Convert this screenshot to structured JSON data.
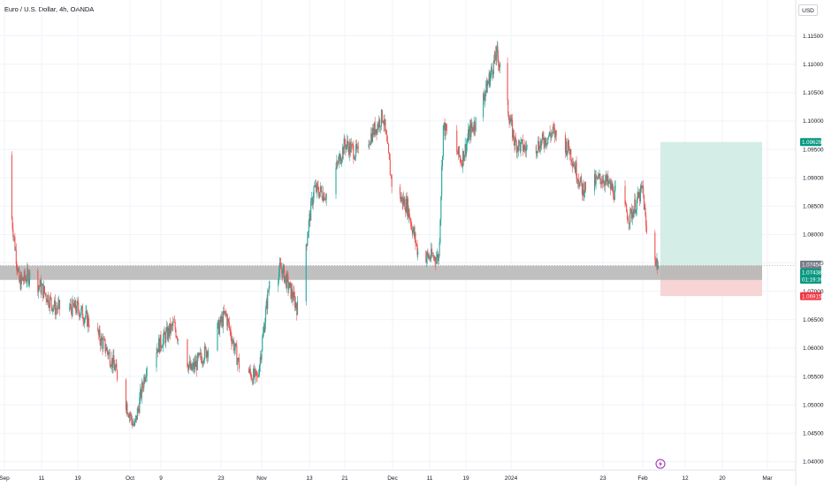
{
  "title": "Euro / U.S. Dollar, 4h, OANDA",
  "currency_button": "USD",
  "colors": {
    "up": "#26a69a",
    "down": "#ef5350",
    "profit_zone": "#d4ede6",
    "loss_zone": "#f7d4d6",
    "support_zone": "#b5b5b5",
    "grid": "#f0f3fa",
    "axis_border": "#e0e3eb",
    "event_icon": "#9c27b0"
  },
  "event_icon": "lightning-icon",
  "price_tags": [
    {
      "id": "target",
      "label": "1.09629",
      "value": 1.09629,
      "color": "#089981"
    },
    {
      "id": "entry",
      "label": "1.07454",
      "value": 1.07454,
      "color": "#787b86"
    },
    {
      "id": "last",
      "label": "1.07438",
      "value": 1.07438,
      "color": "#089981"
    },
    {
      "id": "countdown",
      "label": "01:19:39",
      "color": "#089981"
    },
    {
      "id": "stop",
      "label": "1.06915",
      "value": 1.06915,
      "color": "#f23645"
    }
  ],
  "chart_data": {
    "type": "candlestick",
    "symbol": "EUR/USD",
    "interval": "4h",
    "ylim": [
      1.0385,
      1.1185
    ],
    "y_ticks": [
      "1.11500",
      "1.11000",
      "1.10500",
      "1.10000",
      "1.09500",
      "1.09000",
      "1.08500",
      "1.08000",
      "1.07500",
      "1.07000",
      "1.06500",
      "1.06000",
      "1.05500",
      "1.05000",
      "1.04500",
      "1.04000"
    ],
    "x_ticks": [
      "Sep",
      "11",
      "19",
      "Oct",
      "9",
      "23",
      "Nov",
      "13",
      "21",
      "Dec",
      "11",
      "19",
      "2024",
      "23",
      "Feb",
      "12",
      "20",
      "Mar"
    ],
    "price_path": [
      [
        "Sep 1",
        1.094
      ],
      [
        "Sep 5",
        1.0715
      ],
      [
        "Sep 8",
        1.073
      ],
      [
        "Sep 11",
        1.0705
      ],
      [
        "Sep 14",
        1.067
      ],
      [
        "Sep 19",
        1.067
      ],
      [
        "Sep 22",
        1.0645
      ],
      [
        "Sep 26",
        1.06
      ],
      [
        "Sep 28",
        1.057
      ],
      [
        "Oct 3",
        1.046
      ],
      [
        "Oct 6",
        1.058
      ],
      [
        "Oct 12",
        1.064
      ],
      [
        "Oct 16",
        1.056
      ],
      [
        "Oct 20",
        1.06
      ],
      [
        "Oct 24",
        1.066
      ],
      [
        "Oct 27",
        1.057
      ],
      [
        "Oct 31",
        1.0545
      ],
      [
        "Nov 3",
        1.072
      ],
      [
        "Nov 6",
        1.074
      ],
      [
        "Nov 10",
        1.067
      ],
      [
        "Nov 14",
        1.088
      ],
      [
        "Nov 17",
        1.087
      ],
      [
        "Nov 21",
        1.096
      ],
      [
        "Nov 24",
        1.094
      ],
      [
        "Nov 29",
        1.101
      ],
      [
        "Dec 1",
        1.088
      ],
      [
        "Dec 5",
        1.085
      ],
      [
        "Dec 8",
        1.0765
      ],
      [
        "Dec 11",
        1.076
      ],
      [
        "Dec 13",
        1.076
      ],
      [
        "Dec 14",
        1.099
      ],
      [
        "Dec 18",
        1.093
      ],
      [
        "Dec 20",
        1.098
      ],
      [
        "Dec 22",
        1.1
      ],
      [
        "Dec 28",
        1.112
      ],
      [
        "Jan 2",
        1.096
      ],
      [
        "Jan 5",
        1.095
      ],
      [
        "Jan 8",
        1.096
      ],
      [
        "Jan 11",
        1.098
      ],
      [
        "Jan 15",
        1.095
      ],
      [
        "Jan 18",
        1.088
      ],
      [
        "Jan 23",
        1.09
      ],
      [
        "Jan 26",
        1.087
      ],
      [
        "Jan 29",
        1.083
      ],
      [
        "Feb 1",
        1.088
      ],
      [
        "Feb 2",
        1.08
      ],
      [
        "Feb 5",
        1.0745
      ]
    ],
    "trade_setup": {
      "entry": 1.07454,
      "target": 1.09629,
      "stop": 1.06915,
      "support_zone": [
        1.072,
        1.0745
      ]
    }
  }
}
